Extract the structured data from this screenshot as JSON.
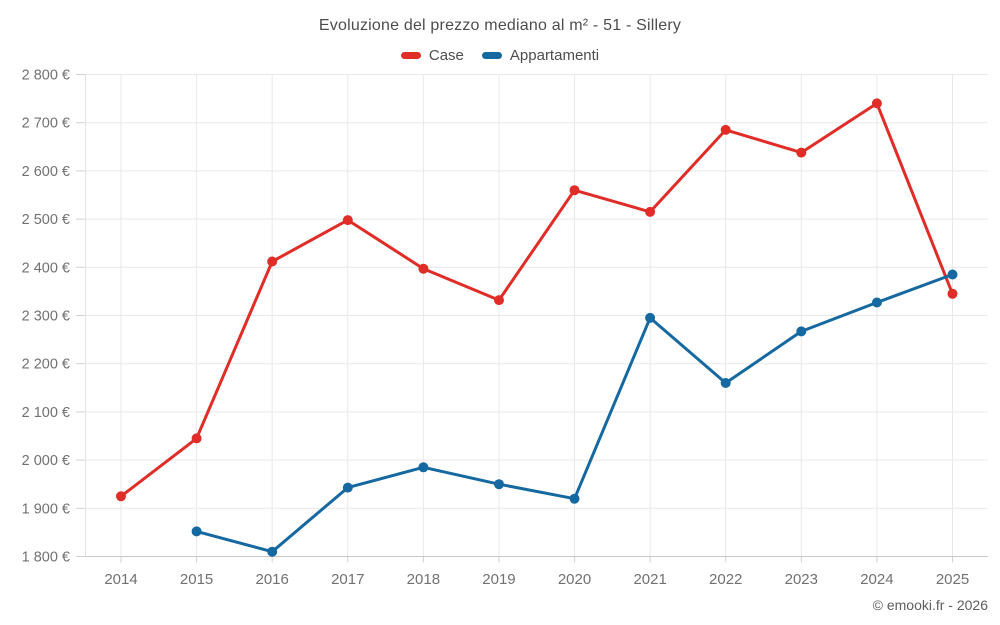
{
  "chart": {
    "title": "Evoluzione del prezzo mediano al m² - 51 - Sillery",
    "watermark": "© emooki.fr - 2026"
  },
  "legend": {
    "items": [
      {
        "label": "Case",
        "color": "#e02d28"
      },
      {
        "label": "Appartamenti",
        "color": "#1569a0"
      }
    ]
  },
  "chart_data": {
    "type": "line",
    "title": "Evoluzione del prezzo mediano al m² - 51 - Sillery",
    "categories": [
      "2014",
      "2015",
      "2016",
      "2017",
      "2018",
      "2019",
      "2020",
      "2021",
      "2022",
      "2023",
      "2024",
      "2025"
    ],
    "series": [
      {
        "name": "Case",
        "color": "#e02d28",
        "values": [
          1925,
          2045,
          2412,
          2498,
          2397,
          2332,
          2560,
          2515,
          2685,
          2638,
          2740,
          2345
        ]
      },
      {
        "name": "Appartamenti",
        "color": "#1569a0",
        "values": [
          null,
          1852,
          1810,
          1943,
          1985,
          1950,
          1920,
          2295,
          2160,
          2267,
          2327,
          2385
        ]
      }
    ],
    "xlabel": "",
    "ylabel": "",
    "ylim": [
      1800,
      2800
    ],
    "ytick_step": 100,
    "y_ticks": [
      {
        "value": 1800,
        "label": "1 800 €"
      },
      {
        "value": 1900,
        "label": "1 900 €"
      },
      {
        "value": 2000,
        "label": "2 000 €"
      },
      {
        "value": 2100,
        "label": "2 100 €"
      },
      {
        "value": 2200,
        "label": "2 200 €"
      },
      {
        "value": 2300,
        "label": "2 300 €"
      },
      {
        "value": 2400,
        "label": "2 400 €"
      },
      {
        "value": 2500,
        "label": "2 500 €"
      },
      {
        "value": 2600,
        "label": "2 600 €"
      },
      {
        "value": 2700,
        "label": "2 700 €"
      },
      {
        "value": 2800,
        "label": "2 800 €"
      }
    ],
    "grid": true,
    "legend_position": "top",
    "watermark": "© emooki.fr - 2026"
  }
}
